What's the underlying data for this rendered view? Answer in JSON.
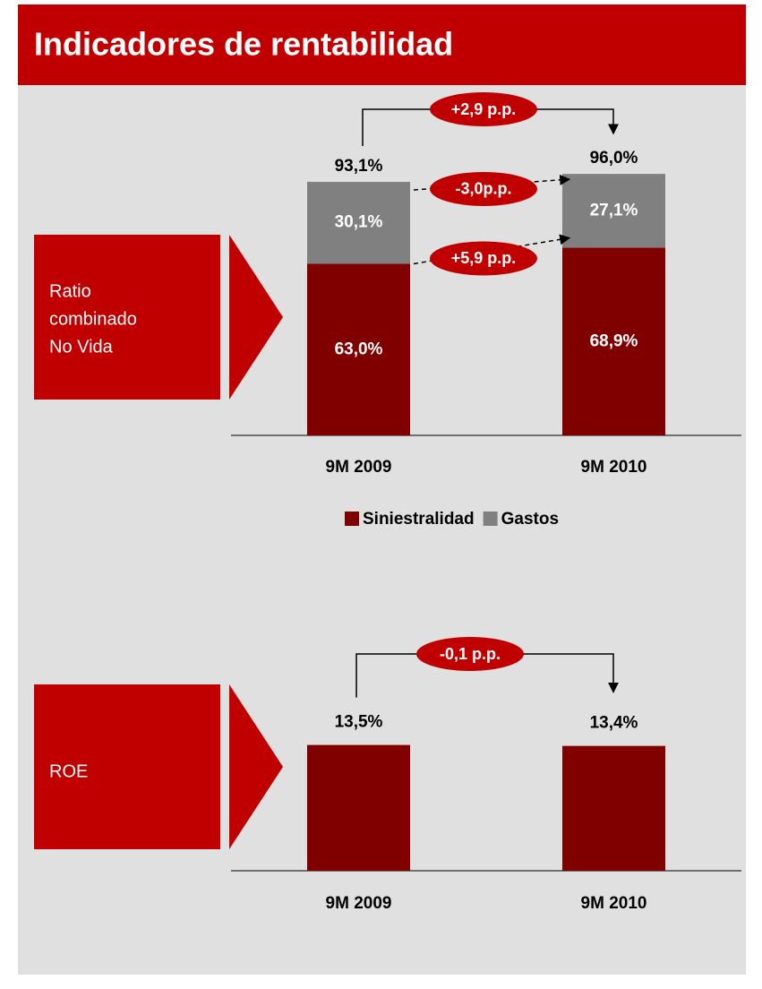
{
  "header": {
    "title": "Indicadores de rentabilidad"
  },
  "chart_data": [
    {
      "type": "stacked-bar",
      "side_label_lines": [
        "Ratio",
        "combinado",
        "No Vida"
      ],
      "categories": [
        "9M 2009",
        "9M 2010"
      ],
      "series": [
        {
          "name": "Siniestralidad",
          "color": "#800000",
          "values": [
            63.0,
            68.9
          ],
          "value_labels": [
            "63,0%",
            "68,9%"
          ]
        },
        {
          "name": "Gastos",
          "color": "#808080",
          "values": [
            30.1,
            27.1
          ],
          "value_labels": [
            "30,1%",
            "27,1%"
          ]
        }
      ],
      "totals": [
        93.1,
        96.0
      ],
      "total_labels": [
        "93,1%",
        "96,0%"
      ],
      "annotations": [
        "+2,9 p.p.",
        "-3,0p.p.",
        "+5,9 p.p."
      ],
      "legend": true
    },
    {
      "type": "bar",
      "side_label_lines": [
        "ROE"
      ],
      "categories": [
        "9M 2009",
        "9M 2010"
      ],
      "values": [
        13.5,
        13.4
      ],
      "value_labels": [
        "13,5%",
        "13,4%"
      ],
      "color": "#800000",
      "annotations": [
        "-0,1 p.p."
      ]
    }
  ]
}
